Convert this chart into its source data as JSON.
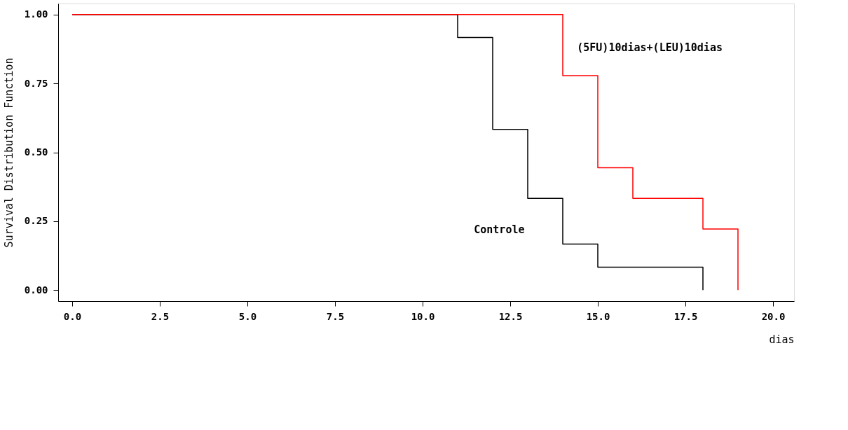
{
  "chart_data": {
    "type": "step",
    "xlabel": "dias",
    "ylabel": "Survival Distribution Function",
    "xlim": [
      -0.4,
      20.6
    ],
    "ylim": [
      -0.04,
      1.04
    ],
    "xticks": [
      {
        "value": 0,
        "label": "0.0"
      },
      {
        "value": 2.5,
        "label": "2.5"
      },
      {
        "value": 5,
        "label": "5.0"
      },
      {
        "value": 7.5,
        "label": "7.5"
      },
      {
        "value": 10,
        "label": "10.0"
      },
      {
        "value": 12.5,
        "label": "12.5"
      },
      {
        "value": 15,
        "label": "15.0"
      },
      {
        "value": 17.5,
        "label": "17.5"
      },
      {
        "value": 20,
        "label": "20.0"
      }
    ],
    "yticks": [
      {
        "value": 0,
        "label": "0.00"
      },
      {
        "value": 0.25,
        "label": "0.25"
      },
      {
        "value": 0.5,
        "label": "0.50"
      },
      {
        "value": 0.75,
        "label": "0.75"
      },
      {
        "value": 1,
        "label": "1.00"
      }
    ],
    "grid": false,
    "marker": "none",
    "line_style": "solid",
    "series": [
      {
        "name": "Controle",
        "color": "#000000",
        "x": [
          0,
          11,
          12,
          13,
          14,
          15,
          18
        ],
        "values": [
          1,
          0.917,
          0.583,
          0.333,
          0.167,
          0.083,
          0
        ]
      },
      {
        "name": "(5FU)10dias+(LEU)10dias",
        "color": "#ff0000",
        "x": [
          0,
          14,
          15,
          16,
          18,
          19
        ],
        "values": [
          1,
          0.778,
          0.444,
          0.333,
          0.222,
          0
        ]
      }
    ]
  }
}
